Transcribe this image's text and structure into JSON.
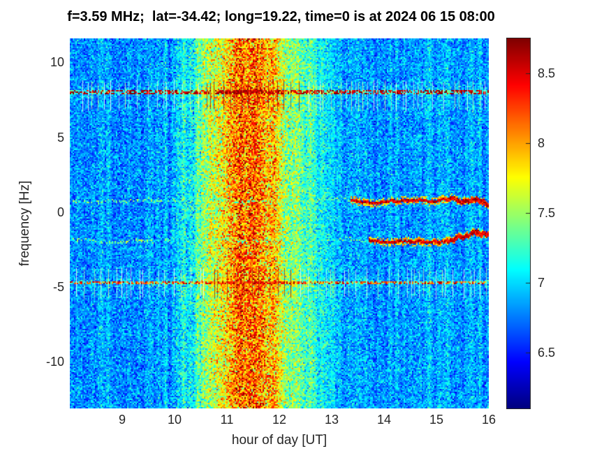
{
  "title": "f=3.59 MHz;  lat=-34.42; long=19.22, time=0 is at 2024 06 15 08:00",
  "chart_data": {
    "type": "heatmap",
    "subtype": "spectrogram",
    "title": "f=3.59 MHz;  lat=-34.42; long=19.22, time=0 is at 2024 06 15 08:00",
    "xlabel": "hour of day [UT]",
    "ylabel": "frequency [Hz]",
    "xlim": [
      8,
      16
    ],
    "x_ticks": [
      9,
      10,
      11,
      12,
      13,
      14,
      15,
      16
    ],
    "ylim": [
      -13.1,
      11.6
    ],
    "y_ticks": [
      -10,
      -5,
      0,
      5,
      10
    ],
    "grid": false,
    "colorbar": {
      "colormap": "jet",
      "vmin": 6.1,
      "vmax": 8.75,
      "ticks": [
        6.5,
        7,
        7.5,
        8,
        8.5
      ],
      "position": "right"
    },
    "background": {
      "mean": 6.82,
      "noise_sigma": 0.17,
      "column_stripe_sigma": 0.09
    },
    "central_band": {
      "center_hour": 11.4,
      "sigma_hours": 0.92,
      "amplitude": 1.32
    },
    "secondary_band": {
      "center_hour": 12.75,
      "sigma_hours": 0.45,
      "amplitude": 0.12
    },
    "interference_bands": [
      {
        "freq_hz": 8.0,
        "speckle_min": 8.35,
        "speckle_max": 8.85,
        "tick_span_hz": [
          8.6,
          6.95
        ]
      },
      {
        "freq_hz": -4.7,
        "speckle_min": 7.9,
        "speckle_max": 8.7,
        "tick_span_hz": [
          -3.9,
          -5.6
        ]
      }
    ],
    "drifting_lines": [
      {
        "freq_hz": 0.75,
        "strong_after_hour": 13.35,
        "wander_hz": 0.4
      },
      {
        "freq_hz": -1.9,
        "strong_after_hour": 13.7,
        "wander_hz": 0.4
      }
    ],
    "seed": 11
  }
}
